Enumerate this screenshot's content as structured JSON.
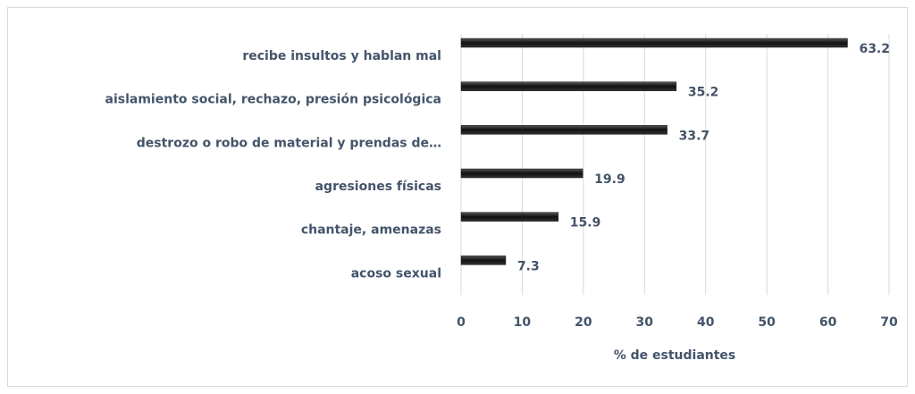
{
  "chart_data": {
    "type": "bar",
    "orientation": "horizontal",
    "categories": [
      "recibe insultos y hablan mal",
      "aislamiento social, rechazo, presión psicológica",
      "destrozo o robo de material y prendas de…",
      "agresiones físicas",
      "chantaje, amenazas",
      "acoso sexual"
    ],
    "values": [
      63.2,
      35.2,
      33.7,
      19.9,
      15.9,
      7.3
    ],
    "color": "#1a1a1a",
    "xlim": [
      0,
      70
    ],
    "xticks": [
      0,
      10,
      20,
      30,
      40,
      50,
      60,
      70
    ],
    "xlabel": "% de estudiantes",
    "grid": true
  }
}
